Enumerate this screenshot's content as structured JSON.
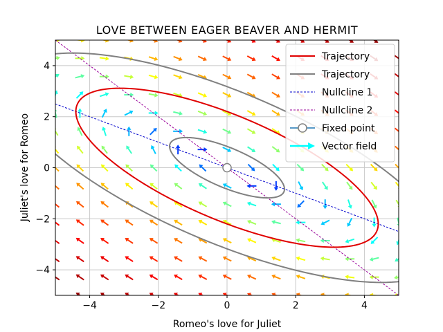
{
  "chart_data": {
    "type": "line",
    "title": "LOVE BETWEEN EAGER BEAVER AND HERMIT",
    "xlabel": "Romeo's love for Juliet",
    "ylabel": "Juliet's love for Romeo",
    "xlim": [
      -5,
      5
    ],
    "ylim": [
      -5,
      5
    ],
    "xticks": [
      -4,
      -2,
      0,
      2,
      4
    ],
    "yticks": [
      -4,
      -2,
      0,
      2,
      4
    ],
    "grid": true,
    "legend_position": "top-right",
    "model": {
      "a": 1,
      "b": 2,
      "c": -1,
      "d": -1
    },
    "series": [
      {
        "name": "Trajectory",
        "kind": "closed-orbit",
        "color": "#e00000",
        "level": 9.7
      },
      {
        "name": "Trajectory",
        "kind": "closed-orbit",
        "color": "#808080",
        "level": [
          20.2,
          1.4
        ]
      },
      {
        "name": "Nullcline 1",
        "kind": "line",
        "color": "#0000cc",
        "style": "dashed",
        "equation": "y = -x/2"
      },
      {
        "name": "Nullcline 2",
        "kind": "line",
        "color": "#990099",
        "style": "dashed",
        "equation": "y = -x"
      },
      {
        "name": "Fixed point",
        "kind": "point",
        "color": "#1f77b4",
        "x": [
          0
        ],
        "y": [
          0
        ]
      },
      {
        "name": "Vector field",
        "kind": "quiver",
        "color": "#00ffff",
        "colormap": "jet"
      }
    ]
  }
}
